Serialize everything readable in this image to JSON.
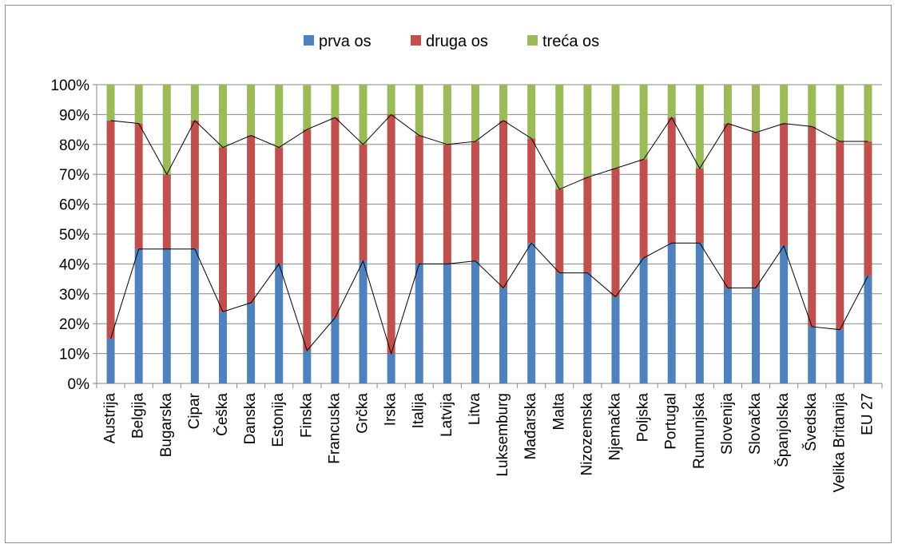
{
  "chart_data": {
    "type": "bar",
    "stacked": true,
    "title": "",
    "xlabel": "",
    "ylabel": "",
    "ylim": [
      0,
      100
    ],
    "yticks": [
      "0%",
      "10%",
      "20%",
      "30%",
      "40%",
      "50%",
      "60%",
      "70%",
      "80%",
      "90%",
      "100%"
    ],
    "grid": true,
    "legend_position": "top",
    "categories": [
      "Austrija",
      "Belgija",
      "Bugarska",
      "Cipar",
      "Češka",
      "Danska",
      "Estonija",
      "Finska",
      "Francuska",
      "Grčka",
      "Irska",
      "Italija",
      "Latvija",
      "Litva",
      "Luksemburg",
      "Mađarska",
      "Malta",
      "Nizozemska",
      "Njemačka",
      "Poljska",
      "Portugal",
      "Rumunjska",
      "Slovenija",
      "Slovačka",
      "Španjolska",
      "Švedska",
      "Velika Britanija",
      "EU 27"
    ],
    "series": [
      {
        "name": "prva os",
        "color": "#4f81bd",
        "values": [
          15,
          45,
          45,
          45,
          24,
          27,
          40,
          11,
          22,
          41,
          10,
          40,
          40,
          41,
          32,
          47,
          37,
          37,
          29,
          42,
          47,
          47,
          32,
          32,
          46,
          19,
          18,
          36
        ]
      },
      {
        "name": "druga os",
        "color": "#c0504d",
        "values": [
          73,
          42,
          25,
          43,
          55,
          56,
          39,
          74,
          67,
          39,
          80,
          43,
          40,
          40,
          56,
          35,
          28,
          32,
          43,
          33,
          42,
          25,
          55,
          52,
          41,
          67,
          63,
          45
        ]
      },
      {
        "name": "treća os",
        "color": "#9bbb59",
        "values": [
          12,
          13,
          30,
          12,
          21,
          17,
          21,
          15,
          11,
          20,
          10,
          17,
          20,
          19,
          12,
          18,
          35,
          31,
          28,
          25,
          11,
          28,
          13,
          16,
          13,
          14,
          19,
          19
        ]
      }
    ]
  }
}
